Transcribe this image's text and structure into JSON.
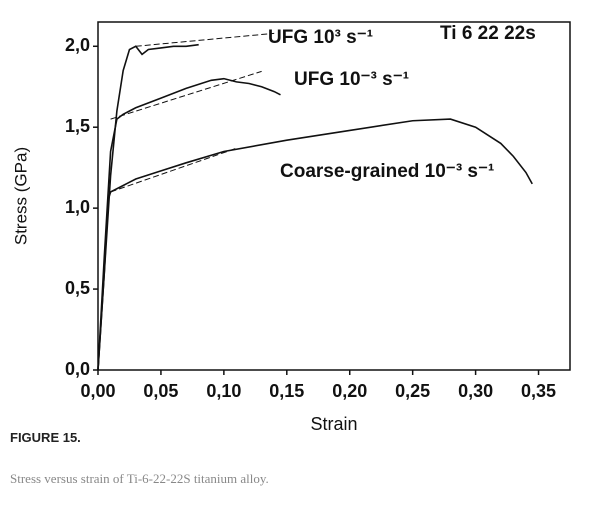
{
  "chart_data": {
    "type": "line",
    "x_label": "Strain",
    "y_label": "Stress (GPa)",
    "annotation": "Ti 6 22 22s",
    "xlim": [
      0,
      0.375
    ],
    "ylim": [
      0,
      2.15
    ],
    "xticks": [
      {
        "value": 0,
        "label": "0,00"
      },
      {
        "value": 0.05,
        "label": "0,05"
      },
      {
        "value": 0.1,
        "label": "0,10"
      },
      {
        "value": 0.15,
        "label": "0,15"
      },
      {
        "value": 0.2,
        "label": "0,20"
      },
      {
        "value": 0.25,
        "label": "0,25"
      },
      {
        "value": 0.3,
        "label": "0,30"
      },
      {
        "value": 0.35,
        "label": "0,35"
      }
    ],
    "yticks": [
      {
        "value": 0,
        "label": "0,0"
      },
      {
        "value": 0.5,
        "label": "0,5"
      },
      {
        "value": 1,
        "label": "1,0"
      },
      {
        "value": 1.5,
        "label": "1,5"
      },
      {
        "value": 2,
        "label": "2,0"
      }
    ],
    "series": [
      {
        "name": "UFG  10³ s⁻¹",
        "color": "#111111",
        "x": [
          0,
          0.005,
          0.01,
          0.015,
          0.02,
          0.025,
          0.03,
          0.035,
          0.04,
          0.05,
          0.06,
          0.07,
          0.08
        ],
        "values": [
          0,
          0.6,
          1.2,
          1.6,
          1.85,
          1.98,
          2.0,
          1.95,
          1.98,
          1.99,
          2.0,
          2.0,
          2.01
        ]
      },
      {
        "name": "UFG  10⁻³ s⁻¹",
        "color": "#111111",
        "x": [
          0,
          0.005,
          0.01,
          0.015,
          0.02,
          0.03,
          0.05,
          0.07,
          0.09,
          0.1,
          0.11,
          0.12,
          0.13,
          0.14,
          0.145
        ],
        "values": [
          0,
          0.7,
          1.35,
          1.55,
          1.58,
          1.62,
          1.68,
          1.74,
          1.79,
          1.8,
          1.78,
          1.77,
          1.75,
          1.72,
          1.7
        ]
      },
      {
        "name": "Coarse-grained  10⁻³ s⁻¹",
        "color": "#111111",
        "x": [
          0,
          0.005,
          0.008,
          0.01,
          0.02,
          0.03,
          0.05,
          0.07,
          0.1,
          0.15,
          0.2,
          0.25,
          0.28,
          0.3,
          0.32,
          0.33,
          0.34,
          0.345
        ],
        "values": [
          0,
          0.6,
          1.05,
          1.1,
          1.14,
          1.18,
          1.23,
          1.28,
          1.35,
          1.42,
          1.48,
          1.54,
          1.55,
          1.5,
          1.4,
          1.32,
          1.22,
          1.15
        ]
      },
      {
        "color": "#111111",
        "dashed": true,
        "x": [
          0.03,
          0.14
        ],
        "values": [
          2.0,
          2.08
        ]
      },
      {
        "color": "#111111",
        "dashed": true,
        "x": [
          0.01,
          0.13
        ],
        "values": [
          1.55,
          1.845
        ]
      },
      {
        "color": "#111111",
        "dashed": true,
        "x": [
          0.01,
          0.11
        ],
        "values": [
          1.1,
          1.37
        ]
      }
    ]
  },
  "caption": {
    "label": "FIGURE 15.",
    "text": "Stress versus strain of Ti-6-22-22S titanium alloy."
  }
}
